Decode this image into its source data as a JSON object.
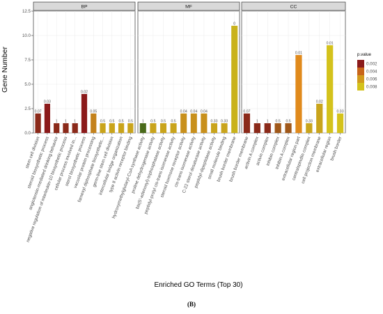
{
  "figure": {
    "caption": "(B)"
  },
  "colors": {
    "panel_bg": "#ffffff",
    "panel_border": "#333333",
    "strip_bg": "#d9d9d9",
    "grid": "#ebebeb",
    "pvalue_low": "#8b1a1a",
    "pvalue_high": "#d4c21c"
  },
  "chart_data": {
    "type": "bar",
    "title": "",
    "xlabel": "Enriched GO Terms (Top 30)",
    "ylabel": "Gene Number",
    "ylim": [
      0,
      12.5
    ],
    "yticks": [
      0.0,
      2.5,
      5.0,
      7.5,
      10.0,
      12.5
    ],
    "ytick_labels": [
      "0.0",
      "2.5",
      "5.0",
      "7.5",
      "10.0",
      "12.5"
    ],
    "grid": true,
    "legend": {
      "title": "p.value",
      "placement": "right",
      "entries": [
        "0.002",
        "0.004",
        "0.006",
        "0.008"
      ],
      "colors": [
        "#8b1a1a",
        "#c8651a",
        "#d29a1c",
        "#d4c21c"
      ]
    },
    "facets": [
      {
        "name": "BP",
        "bars": [
          {
            "term": "stem cell division",
            "value": 2,
            "label": "0.07",
            "color": "#8b2a1a"
          },
          {
            "term": "steroid biosynthetic process",
            "value": 3,
            "label": "0.03",
            "color": "#8b1a1a"
          },
          {
            "term": "angiotensin-mediated drinking behavior",
            "value": 1,
            "label": "1",
            "color": "#8b2a1a"
          },
          {
            "term": "negative regulation of interleukin-10 biosynthetic process",
            "value": 1,
            "label": "1",
            "color": "#8b2a1a"
          },
          {
            "term": "cellular process involved in...",
            "value": 1,
            "label": "1",
            "color": "#8b2a1a"
          },
          {
            "term": "sterol biosynthetic process",
            "value": 4,
            "label": "0.02",
            "color": "#8b1a1a"
          },
          {
            "term": "vacuolar protein processing",
            "value": 2,
            "label": "0.05",
            "color": "#c4821c"
          },
          {
            "term": "farnesyl diphosphate biosynthetic...",
            "value": 1,
            "label": "0.5",
            "color": "#c9a41c"
          },
          {
            "term": "germ-line stem cell division",
            "value": 1,
            "label": "0.5",
            "color": "#c9a41c"
          },
          {
            "term": "intercellular bridge organization",
            "value": 1,
            "label": "0.5",
            "color": "#c9a41c"
          },
          {
            "term": "type II activin receptor binding",
            "value": 1,
            "label": "0.5",
            "color": "#c9a41c"
          }
        ]
      },
      {
        "name": "MF",
        "bars": [
          {
            "term": "hydroxymethylglutaryl-CoA synthase activity",
            "value": 1,
            "label": "1",
            "color": "#4a6a1a"
          },
          {
            "term": "proline dehydrogenase activity",
            "value": 1,
            "label": "0.5",
            "color": "#c9a41c"
          },
          {
            "term": "bis(5'-adenosyl)-triphosphatase activity",
            "value": 1,
            "label": "0.5",
            "color": "#c9a41c"
          },
          {
            "term": "peptidyl-prolyl cis-trans isomerase activity",
            "value": 1,
            "label": "0.5",
            "color": "#c9a41c"
          },
          {
            "term": "steroid hormone receptor activity",
            "value": 2,
            "label": "0.04",
            "color": "#c8901c"
          },
          {
            "term": "cis-trans isomerase activity",
            "value": 2,
            "label": "0.04",
            "color": "#c8901c"
          },
          {
            "term": "C-22 sterol desaturase activity",
            "value": 2,
            "label": "0.04",
            "color": "#c8901c"
          },
          {
            "term": "peptidyl-dipeptidase activity",
            "value": 1,
            "label": "0.33",
            "color": "#c9a41c"
          },
          {
            "term": "small molecule binding",
            "value": 1,
            "label": "0.33",
            "color": "#c9a41c"
          },
          {
            "term": "brush border membrane",
            "value": 11,
            "label": "0",
            "color": "#c9b21c"
          }
        ]
      },
      {
        "name": "CC",
        "bars": [
          {
            "term": "brush border membrane",
            "value": 2,
            "label": "0.07",
            "color": "#8b2a1a"
          },
          {
            "term": "activin A complex",
            "value": 1,
            "label": "1",
            "color": "#8b2a1a"
          },
          {
            "term": "activin complex",
            "value": 1,
            "label": "1",
            "color": "#8b2a1a"
          },
          {
            "term": "inhibin complex",
            "value": 1,
            "label": "0.5",
            "color": "#a0581a"
          },
          {
            "term": "inhibin A complex",
            "value": 1,
            "label": "0.5",
            "color": "#a0581a"
          },
          {
            "term": "extracellular region part",
            "value": 8,
            "label": "0.01",
            "color": "#e08a1c"
          },
          {
            "term": "centralspindlin complex",
            "value": 1,
            "label": "0.33",
            "color": "#c9a41c"
          },
          {
            "term": "cell projection membrane",
            "value": 3,
            "label": "0.02",
            "color": "#c9a41c"
          },
          {
            "term": "extracellular region",
            "value": 9,
            "label": "0.01",
            "color": "#d4c21c"
          },
          {
            "term": "brush border",
            "value": 2,
            "label": "0.03",
            "color": "#d4c21c"
          }
        ]
      }
    ]
  }
}
